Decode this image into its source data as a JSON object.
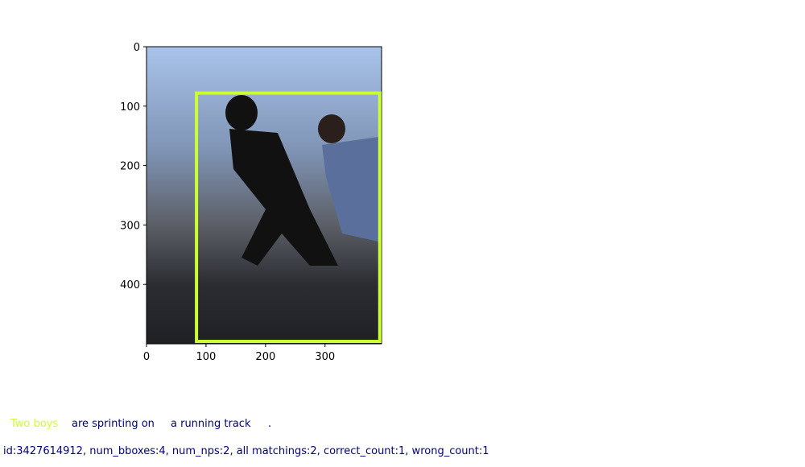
{
  "chart_data": {
    "type": "image",
    "xlim": [
      0,
      395
    ],
    "ylim": [
      500,
      0
    ],
    "xticks": [
      0,
      100,
      200,
      300
    ],
    "yticks": [
      0,
      100,
      200,
      300,
      400
    ],
    "boxes": [
      {
        "x": [
          84,
          392
        ],
        "y": [
          78,
          496
        ],
        "color": "#ccff33"
      }
    ]
  },
  "caption": {
    "segments": [
      {
        "text": "Two boys",
        "color": "#ccff33"
      },
      {
        "text": "are sprinting on",
        "color": "#000080"
      },
      {
        "text": "a running track",
        "color": "#000080"
      },
      {
        "text": ".",
        "color": "#000080"
      }
    ]
  },
  "info": "id:3427614912, num_bboxes:4, num_nps:2, all matchings:2, correct_count:1, wrong_count:1"
}
